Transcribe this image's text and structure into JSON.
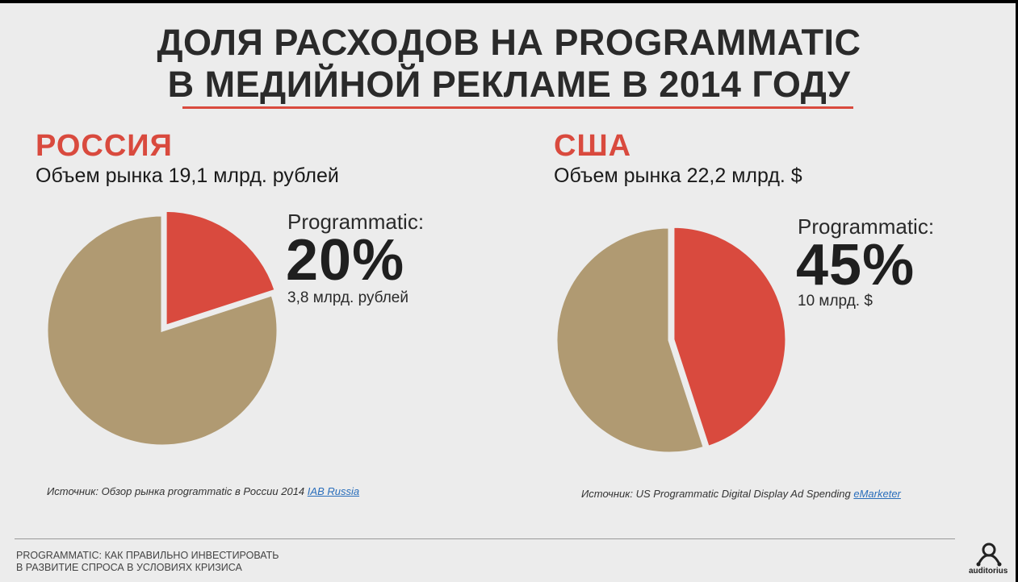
{
  "title_line1": "ДОЛЯ РАСХОДОВ НА PROGRAMMATIC",
  "title_line2": "В МЕДИЙНОЙ РЕКЛАМЕ В 2014 ГОДУ",
  "russia": {
    "country": "РОССИЯ",
    "market": "Объем рынка 19,1 млрд. рублей",
    "programmatic_label": "Programmatic:",
    "percent_text": "20%",
    "value_text": "3,8 млрд. рублей",
    "source_prefix": "Источник: Обзор рынка programmatic в России 2014",
    "source_link": "IAB Russia"
  },
  "usa": {
    "country": "США",
    "market": "Объем рынка 22,2 млрд. $",
    "programmatic_label": "Programmatic:",
    "percent_text": "45%",
    "value_text": "10 млрд. $",
    "source_prefix": "Источник: US Programmatic Digital Display Ad Spending",
    "source_link": "eMarketer"
  },
  "chart_data": [
    {
      "type": "pie",
      "title": "РОССИЯ",
      "slices": [
        {
          "label": "Programmatic",
          "value": 20,
          "color": "#d94a3e",
          "exploded": true
        },
        {
          "label": "",
          "value": 80,
          "color": "#b09a72"
        }
      ]
    },
    {
      "type": "pie",
      "title": "США",
      "slices": [
        {
          "label": "Programmatic",
          "value": 45,
          "color": "#d94a3e",
          "exploded": true
        },
        {
          "label": "",
          "value": 55,
          "color": "#b09a72"
        }
      ]
    }
  ],
  "footer_line1": "PROGRAMMATIC: КАК ПРАВИЛЬНО ИНВЕСТИРОВАТЬ",
  "footer_line2": "В РАЗВИТИЕ СПРОСА В УСЛОВИЯХ КРИЗИСА",
  "logo_text": "auditorius",
  "colors": {
    "accent": "#d94a3e",
    "pie_other": "#b09a72",
    "background": "#ececec"
  }
}
